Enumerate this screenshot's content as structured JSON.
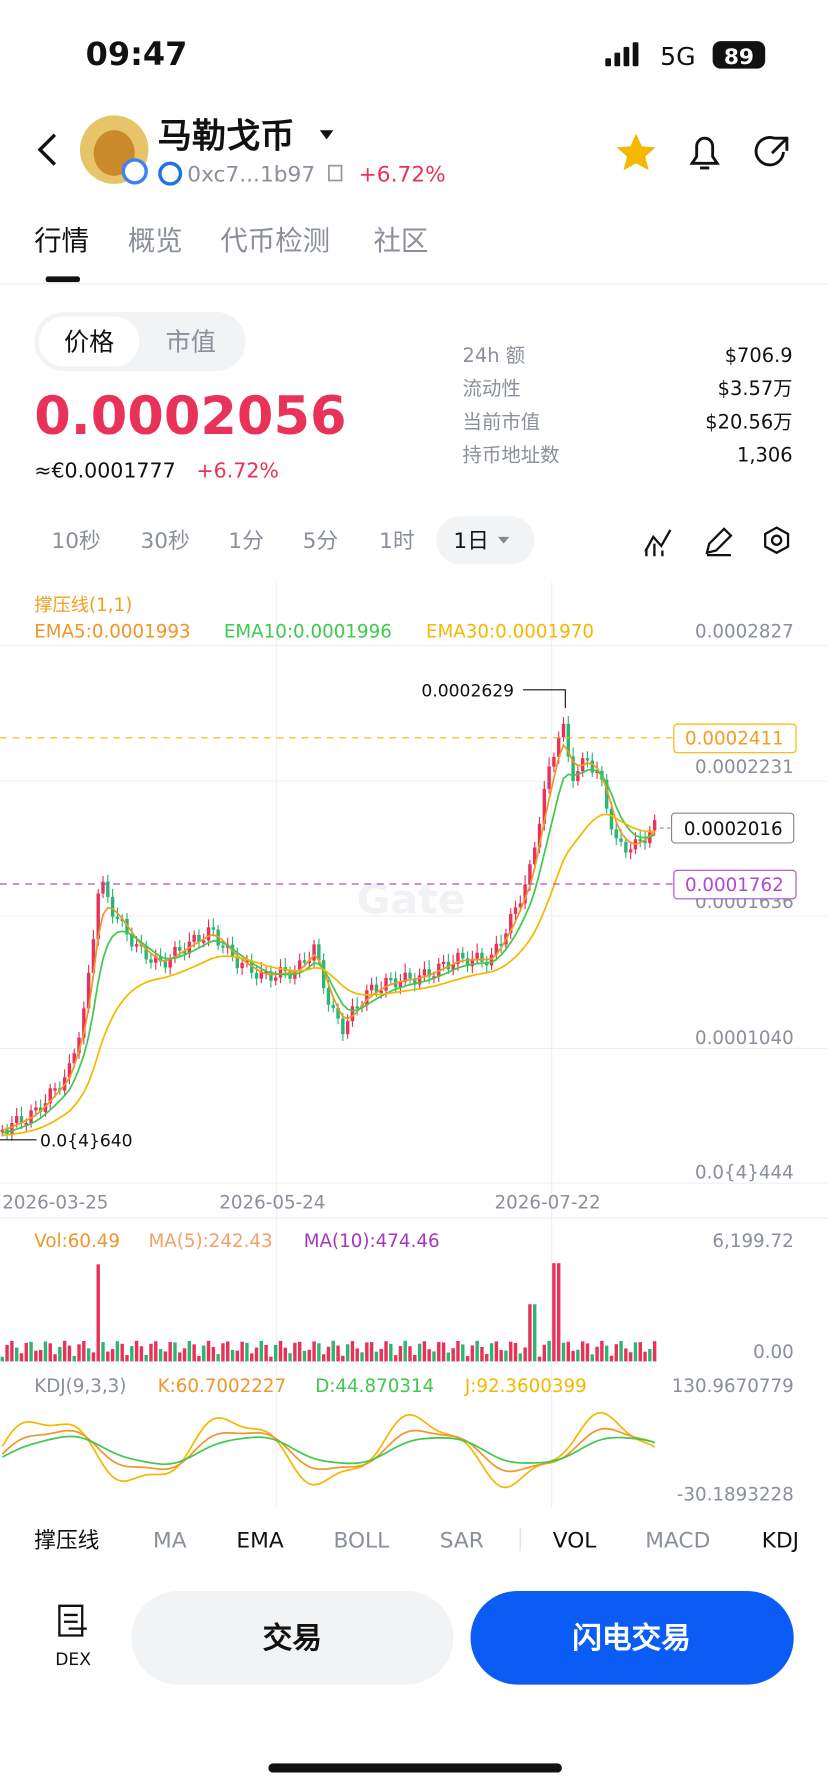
{
  "status_bar": {
    "time": "09:47",
    "network": "5G",
    "battery": "89"
  },
  "header": {
    "title": "马勒戈币",
    "address": "0xc7...1b97",
    "change": "+6.72%"
  },
  "tabs": [
    "行情",
    "概览",
    "代币检测",
    "社区"
  ],
  "price_toggle": [
    "价格",
    "市值"
  ],
  "price": {
    "value": "0.0002056",
    "fiat": "≈€0.0001777",
    "change": "+6.72%"
  },
  "stats": [
    {
      "label": "24h 额",
      "value": "$706.9"
    },
    {
      "label": "流动性",
      "value": "$3.57万"
    },
    {
      "label": "当前市值",
      "value": "$20.56万"
    },
    {
      "label": "持币地址数",
      "value": "1,306"
    }
  ],
  "intervals": [
    "10秒",
    "30秒",
    "1分",
    "5分",
    "1时",
    "1日"
  ],
  "chart": {
    "indicator": "撑压线(1,1)",
    "ema": [
      "EMA5:0.0001993",
      "EMA10:0.0001996",
      "EMA30:0.0001970"
    ],
    "y_labels": [
      "0.0002827",
      "0.0002231",
      "0.0001636",
      "0.0001040",
      "0.0{4}444"
    ],
    "levels": {
      "resistance": "0.0002411",
      "current": "0.0002016",
      "support": "0.0001762"
    },
    "high": "0.0002629",
    "low": "0.0{4}640",
    "x_labels": [
      "2026-03-25",
      "2026-05-24",
      "2026-07-22"
    ]
  },
  "volume": {
    "legend": [
      "Vol:60.49",
      "MA(5):242.43",
      "MA(10):474.46"
    ],
    "y_labels": [
      "6,199.72",
      "0.00"
    ]
  },
  "kdj": {
    "legend": [
      "KDJ(9,3,3)",
      "K:60.7002227",
      "D:44.870314",
      "J:92.3600399"
    ],
    "y_labels": [
      "130.9670779",
      "-30.1893228"
    ]
  },
  "indicators": [
    "撑压线",
    "MA",
    "EMA",
    "BOLL",
    "SAR",
    "VOL",
    "MACD",
    "KDJ"
  ],
  "actions": {
    "dex": "DEX",
    "trade": "交易",
    "flash_trade": "闪电交易"
  }
}
